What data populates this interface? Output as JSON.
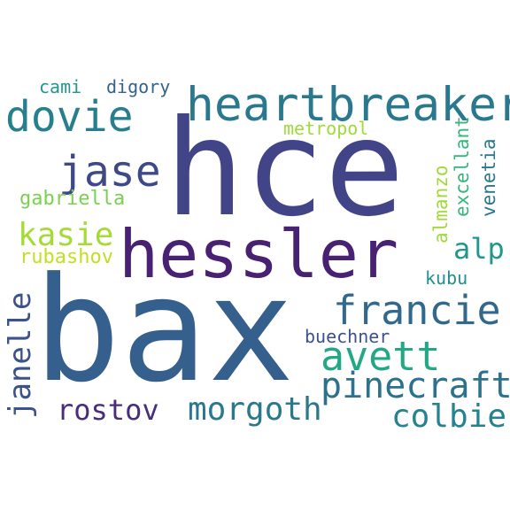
{
  "words": [
    {
      "id": "bax",
      "text": "bax",
      "color": "#355f8d"
    },
    {
      "id": "hce",
      "text": "hce",
      "color": "#414487"
    },
    {
      "id": "hessler",
      "text": "hessler",
      "color": "#482173"
    },
    {
      "id": "heartbreaker",
      "text": "heartbreaker",
      "color": "#2a788e"
    },
    {
      "id": "dovie",
      "text": "dovie",
      "color": "#277f8e"
    },
    {
      "id": "jase",
      "text": "jase",
      "color": "#3e4989"
    },
    {
      "id": "francie",
      "text": "francie",
      "color": "#31688e"
    },
    {
      "id": "avett",
      "text": "avett",
      "color": "#22a884"
    },
    {
      "id": "pinecraft",
      "text": "pinecraft",
      "color": "#2c728e"
    },
    {
      "id": "morgoth",
      "text": "morgoth",
      "color": "#2a788e"
    },
    {
      "id": "colbie",
      "text": "colbie",
      "color": "#26828e"
    },
    {
      "id": "rostov",
      "text": "rostov",
      "color": "#472d7b"
    },
    {
      "id": "janelle",
      "text": "janelle",
      "color": "#3b528b"
    },
    {
      "id": "kasie",
      "text": "kasie",
      "color": "#a5db36"
    },
    {
      "id": "alp",
      "text": "alp",
      "color": "#1f988b"
    },
    {
      "id": "gabriella",
      "text": "gabriella",
      "color": "#7ad151"
    },
    {
      "id": "rubashov",
      "text": "rubashov",
      "color": "#c2df23"
    },
    {
      "id": "kubu",
      "text": "kubu",
      "color": "#21918c"
    },
    {
      "id": "buechner",
      "text": "buechner",
      "color": "#3b528b"
    },
    {
      "id": "metropol",
      "text": "metropol",
      "color": "#a0da39"
    },
    {
      "id": "cami",
      "text": "cami",
      "color": "#1f988b"
    },
    {
      "id": "digory",
      "text": "digory",
      "color": "#33638d"
    },
    {
      "id": "excellant",
      "text": "excellant",
      "color": "#35b779"
    },
    {
      "id": "almanzo",
      "text": "almanzo",
      "color": "#a0da39"
    },
    {
      "id": "venetia",
      "text": "venetia",
      "color": "#2a788e"
    }
  ]
}
